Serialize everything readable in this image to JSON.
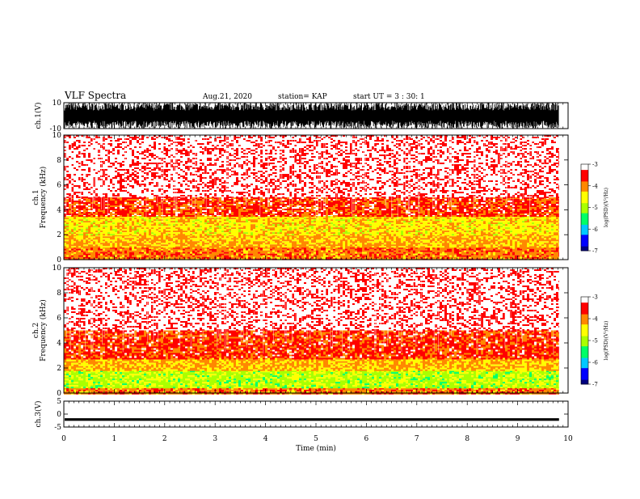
{
  "header": {
    "title": "VLF Spectra",
    "date": "Aug.21, 2020",
    "station": "station= KAP",
    "start_ut": "start  UT =   3  : 30: 1"
  },
  "colors": {
    "waveform": "#000000",
    "spectrogram_background": "#ffffff",
    "colormap": [
      "#00007f",
      "#0000ff",
      "#00c8ff",
      "#00ff66",
      "#aaff00",
      "#ffff00",
      "#ff8800",
      "#ff0000",
      "#ffffff"
    ]
  },
  "chart_data": [
    {
      "type": "line",
      "panel": "ch1-waveform",
      "ylabel": "ch.1(V)",
      "ylim": [
        -10,
        10
      ],
      "yticks": [
        "10",
        "-10"
      ],
      "xlim": [
        0,
        10
      ],
      "description": "dense black voltage waveform filling most of the range"
    },
    {
      "type": "heatmap",
      "panel": "ch1-spectrogram",
      "ylabel_line1": "ch.1",
      "ylabel_line2": "Frequency  (kHz)",
      "ylim": [
        0,
        10
      ],
      "yticks": [
        "0",
        "2",
        "4",
        "6",
        "8",
        "10"
      ],
      "xlim": [
        0,
        9.82
      ],
      "bands": [
        {
          "from": 0,
          "to": 1.0,
          "level": -3.9
        },
        {
          "from": 1.0,
          "to": 2.0,
          "level": -4.2
        },
        {
          "from": 2.0,
          "to": 3.5,
          "level": -4.4
        },
        {
          "from": 3.5,
          "to": 5.0,
          "level": -3.6
        },
        {
          "from": 5.0,
          "to": 10.0,
          "level": -3.3
        }
      ],
      "colorbar": {
        "label": "log(PSD)(V²/Hz)",
        "range": [
          -7,
          -3
        ],
        "ticks": [
          "-3",
          "-4",
          "-5",
          "-6",
          "-7"
        ]
      }
    },
    {
      "type": "heatmap",
      "panel": "ch2-spectrogram",
      "ylabel_line1": "ch.2",
      "ylabel_line2": "Frequency  (kHz)",
      "ylim": [
        0,
        10
      ],
      "yticks": [
        "0",
        "2",
        "4",
        "6",
        "8",
        "10"
      ],
      "xlim": [
        0,
        9.82
      ],
      "bands": [
        {
          "from": 0,
          "to": 0.4,
          "level": -3.9
        },
        {
          "from": 0.4,
          "to": 1.8,
          "level": -4.9
        },
        {
          "from": 1.8,
          "to": 2.8,
          "level": -4.2
        },
        {
          "from": 2.8,
          "to": 5.0,
          "level": -3.6
        },
        {
          "from": 5.0,
          "to": 10.0,
          "level": -3.3
        }
      ],
      "colorbar": {
        "label": "log(PSD)(V²/Hz)",
        "range": [
          -7,
          -3
        ],
        "ticks": [
          "-3",
          "-4",
          "-5",
          "-6",
          "-7"
        ]
      }
    },
    {
      "type": "line",
      "panel": "ch3-waveform",
      "ylabel": "ch.3(V)",
      "ylim": [
        -5,
        5
      ],
      "yticks": [
        "5",
        "0",
        "-5"
      ],
      "xlim": [
        0,
        10
      ],
      "description": "near-constant thick black band around -2 V"
    }
  ],
  "xaxis": {
    "label": "Time  (min)",
    "range": [
      0,
      10
    ],
    "ticks": [
      "0",
      "1",
      "2",
      "3",
      "4",
      "5",
      "6",
      "7",
      "8",
      "9",
      "10"
    ]
  }
}
